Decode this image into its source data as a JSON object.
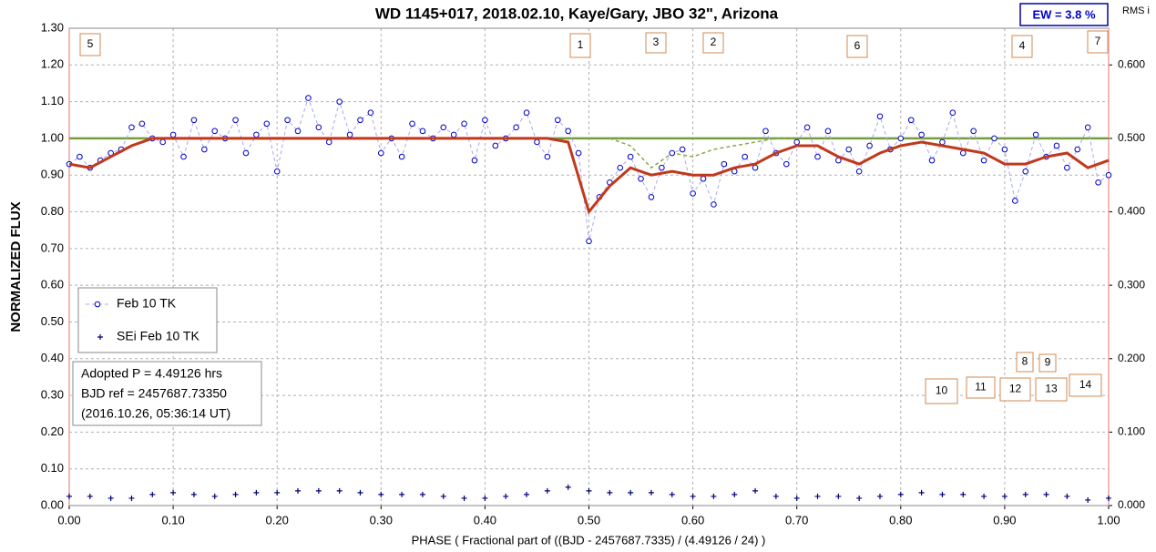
{
  "chart_data": {
    "type": "line",
    "title": "WD 1145+017, 2018.02.10,  Kaye/Gary,  JBO 32\", Arizona",
    "ew_label": "EW =  3.8 %",
    "rms_label": "RMS i",
    "ylabel": "NORMALIZED  FLUX",
    "xlabel": "PHASE  ( Fractional part of ((BJD - 2457687.7335)  / (4.49126  / 24) )",
    "info": [
      "Adopted P = 4.49126 hrs",
      "BJD ref = 2457687.73350",
      "(2016.10.26, 05:36:14 UT)"
    ],
    "annotations": [
      "5",
      "1",
      "3",
      "2",
      "6",
      "4",
      "7",
      "8",
      "9",
      "10",
      "11",
      "12",
      "13",
      "14"
    ],
    "xlim": [
      0,
      1
    ],
    "ylim": [
      0,
      1.3
    ],
    "y2lim": [
      0,
      0.65
    ],
    "grid": true,
    "xticks": [
      {
        "value": 0,
        "label": "0.00"
      },
      {
        "value": 0.1,
        "label": "0.10"
      },
      {
        "value": 0.2,
        "label": "0.20"
      },
      {
        "value": 0.3,
        "label": "0.30"
      },
      {
        "value": 0.4,
        "label": "0.40"
      },
      {
        "value": 0.5,
        "label": "0.50"
      },
      {
        "value": 0.6,
        "label": "0.60"
      },
      {
        "value": 0.7,
        "label": "0.70"
      },
      {
        "value": 0.8,
        "label": "0.80"
      },
      {
        "value": 0.9,
        "label": "0.90"
      },
      {
        "value": 1,
        "label": "1.00"
      }
    ],
    "yticks": [
      {
        "value": 0,
        "label": "0.00"
      },
      {
        "value": 0.1,
        "label": "0.10"
      },
      {
        "value": 0.2,
        "label": "0.20"
      },
      {
        "value": 0.3,
        "label": "0.30"
      },
      {
        "value": 0.4,
        "label": "0.40"
      },
      {
        "value": 0.5,
        "label": "0.50"
      },
      {
        "value": 0.6,
        "label": "0.60"
      },
      {
        "value": 0.7,
        "label": "0.70"
      },
      {
        "value": 0.8,
        "label": "0.80"
      },
      {
        "value": 0.9,
        "label": "0.90"
      },
      {
        "value": 1,
        "label": "1.00"
      },
      {
        "value": 1.1,
        "label": "1.10"
      },
      {
        "value": 1.2,
        "label": "1.20"
      },
      {
        "value": 1.3,
        "label": "1.30"
      }
    ],
    "y2ticks": [
      {
        "value": 0,
        "label": "0.000"
      },
      {
        "value": 0.1,
        "label": "0.100"
      },
      {
        "value": 0.2,
        "label": "0.200"
      },
      {
        "value": 0.3,
        "label": "0.300"
      },
      {
        "value": 0.4,
        "label": "0.400"
      },
      {
        "value": 0.5,
        "label": "0.500"
      },
      {
        "value": 0.6,
        "label": "0.600"
      }
    ],
    "series": [
      {
        "name": "Feb 10 TK",
        "color": "#0000cc",
        "marker": "circle",
        "line": "dashed",
        "x": [
          0,
          0.01,
          0.02,
          0.03,
          0.04,
          0.05,
          0.06,
          0.07,
          0.08,
          0.09,
          0.1,
          0.11,
          0.12,
          0.13,
          0.14,
          0.15,
          0.16,
          0.17,
          0.18,
          0.19,
          0.2,
          0.21,
          0.22,
          0.23,
          0.24,
          0.25,
          0.26,
          0.27,
          0.28,
          0.29,
          0.3,
          0.31,
          0.32,
          0.33,
          0.34,
          0.35,
          0.36,
          0.37,
          0.38,
          0.39,
          0.4,
          0.41,
          0.42,
          0.43,
          0.44,
          0.45,
          0.46,
          0.47,
          0.48,
          0.49,
          0.5,
          0.51,
          0.52,
          0.53,
          0.54,
          0.55,
          0.56,
          0.57,
          0.58,
          0.59,
          0.6,
          0.61,
          0.62,
          0.63,
          0.64,
          0.65,
          0.66,
          0.67,
          0.68,
          0.69,
          0.7,
          0.71,
          0.72,
          0.73,
          0.74,
          0.75,
          0.76,
          0.77,
          0.78,
          0.79,
          0.8,
          0.81,
          0.82,
          0.83,
          0.84,
          0.85,
          0.86,
          0.87,
          0.88,
          0.89,
          0.9,
          0.91,
          0.92,
          0.93,
          0.94,
          0.95,
          0.96,
          0.97,
          0.98,
          0.99,
          1
        ],
        "values": [
          0.93,
          0.95,
          0.92,
          0.94,
          0.96,
          0.97,
          1.03,
          1.04,
          1.0,
          0.99,
          1.01,
          0.95,
          1.05,
          0.97,
          1.02,
          1.0,
          1.05,
          0.96,
          1.01,
          1.04,
          0.91,
          1.05,
          1.02,
          1.11,
          1.03,
          0.99,
          1.1,
          1.01,
          1.05,
          1.07,
          0.96,
          1.0,
          0.95,
          1.04,
          1.02,
          1.0,
          1.03,
          1.01,
          1.04,
          0.94,
          1.05,
          0.98,
          1.0,
          1.03,
          1.07,
          0.99,
          0.95,
          1.05,
          1.02,
          0.96,
          0.72,
          0.84,
          0.88,
          0.92,
          0.95,
          0.89,
          0.84,
          0.92,
          0.96,
          0.97,
          0.85,
          0.89,
          0.82,
          0.93,
          0.91,
          0.95,
          0.92,
          1.02,
          0.96,
          0.93,
          0.99,
          1.03,
          0.95,
          1.02,
          0.94,
          0.97,
          0.91,
          0.98,
          1.06,
          0.97,
          1.0,
          1.05,
          1.01,
          0.94,
          0.99,
          1.07,
          0.96,
          1.02,
          0.94,
          1.0,
          0.97,
          0.83,
          0.91,
          1.01,
          0.95,
          0.98,
          0.92,
          0.97,
          1.03,
          0.88,
          0.9
        ]
      },
      {
        "name": "SEi Feb 10 TK",
        "color": "#00007a",
        "marker": "plus",
        "line": "none",
        "x": [
          0,
          0.02,
          0.04,
          0.06,
          0.08,
          0.1,
          0.12,
          0.14,
          0.16,
          0.18,
          0.2,
          0.22,
          0.24,
          0.26,
          0.28,
          0.3,
          0.32,
          0.34,
          0.36,
          0.38,
          0.4,
          0.42,
          0.44,
          0.46,
          0.48,
          0.5,
          0.52,
          0.54,
          0.56,
          0.58,
          0.6,
          0.62,
          0.64,
          0.66,
          0.68,
          0.7,
          0.72,
          0.74,
          0.76,
          0.78,
          0.8,
          0.82,
          0.84,
          0.86,
          0.88,
          0.9,
          0.92,
          0.94,
          0.96,
          0.98,
          1
        ],
        "values": [
          0.025,
          0.025,
          0.02,
          0.02,
          0.03,
          0.035,
          0.03,
          0.025,
          0.03,
          0.035,
          0.035,
          0.04,
          0.04,
          0.04,
          0.035,
          0.03,
          0.03,
          0.03,
          0.025,
          0.02,
          0.02,
          0.025,
          0.03,
          0.04,
          0.05,
          0.04,
          0.035,
          0.035,
          0.035,
          0.03,
          0.025,
          0.025,
          0.03,
          0.04,
          0.025,
          0.02,
          0.025,
          0.025,
          0.02,
          0.025,
          0.03,
          0.035,
          0.03,
          0.03,
          0.025,
          0.025,
          0.03,
          0.03,
          0.025,
          0.015,
          0.02
        ]
      },
      {
        "color": "#7a9a40",
        "marker": "none",
        "line": "solid",
        "x": [
          0,
          1
        ],
        "values": [
          1,
          1
        ]
      },
      {
        "color": "#8aa84a",
        "marker": "none",
        "line": "dashed",
        "x": [
          0.52,
          0.54,
          0.56,
          0.58,
          0.6,
          0.62,
          0.64,
          0.66,
          0.68,
          0.7
        ],
        "values": [
          1.0,
          0.98,
          0.92,
          0.96,
          0.95,
          0.97,
          0.98,
          0.99,
          1.0,
          1.0
        ]
      },
      {
        "color": "#c0391b",
        "marker": "none",
        "line": "model",
        "x": [
          0,
          0.02,
          0.04,
          0.06,
          0.08,
          0.1,
          0.12,
          0.14,
          0.16,
          0.18,
          0.2,
          0.22,
          0.24,
          0.26,
          0.28,
          0.3,
          0.32,
          0.34,
          0.36,
          0.38,
          0.4,
          0.42,
          0.44,
          0.46,
          0.48,
          0.5,
          0.52,
          0.54,
          0.56,
          0.58,
          0.6,
          0.62,
          0.64,
          0.66,
          0.68,
          0.7,
          0.72,
          0.74,
          0.76,
          0.78,
          0.8,
          0.82,
          0.84,
          0.86,
          0.88,
          0.9,
          0.92,
          0.94,
          0.96,
          0.98,
          1
        ],
        "values": [
          0.93,
          0.92,
          0.95,
          0.98,
          1.0,
          1.0,
          1.0,
          1.0,
          1.0,
          1.0,
          1.0,
          1.0,
          1.0,
          1.0,
          1.0,
          1.0,
          1.0,
          1.0,
          1.0,
          1.0,
          1.0,
          1.0,
          1.0,
          1.0,
          0.99,
          0.8,
          0.87,
          0.92,
          0.9,
          0.91,
          0.9,
          0.9,
          0.92,
          0.93,
          0.96,
          0.98,
          0.98,
          0.95,
          0.93,
          0.96,
          0.98,
          0.99,
          0.98,
          0.97,
          0.96,
          0.93,
          0.93,
          0.95,
          0.96,
          0.92,
          0.94
        ]
      }
    ]
  }
}
